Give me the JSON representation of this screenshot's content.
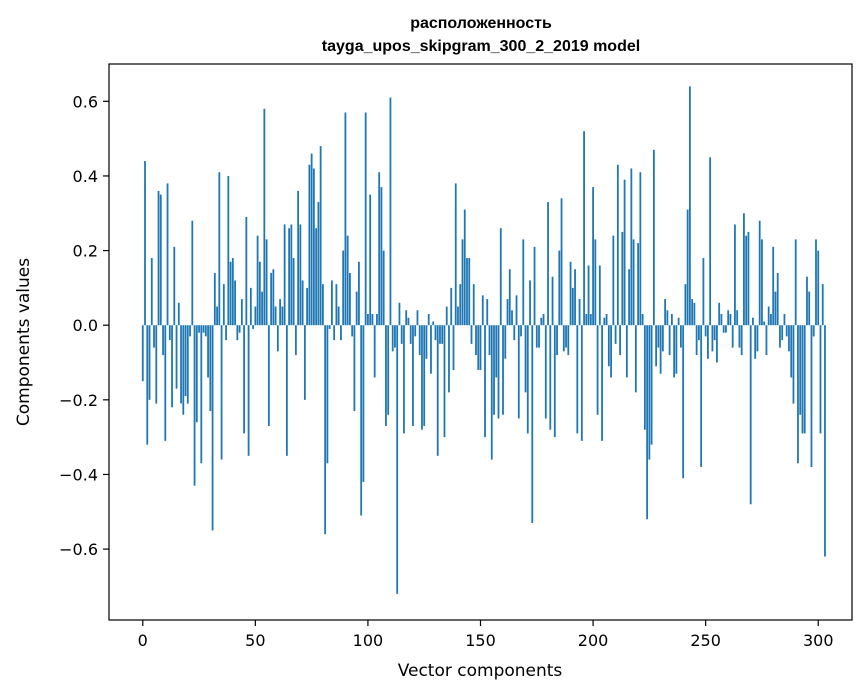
{
  "chart_data": {
    "type": "bar",
    "title": "расположенность",
    "subtitle": "tayga_upos_skipgram_300_2_2019 model",
    "xlabel": "Vector components",
    "ylabel": "Components values",
    "xlim": [
      -15,
      315
    ],
    "ylim": [
      -0.79,
      0.7
    ],
    "xticks": [
      0,
      50,
      100,
      150,
      200,
      250,
      300
    ],
    "yticks": [
      -0.6,
      -0.4,
      -0.2,
      0.0,
      0.2,
      0.4,
      0.6
    ],
    "xtick_labels": [
      "0",
      "50",
      "100",
      "150",
      "200",
      "250",
      "300"
    ],
    "ytick_labels": [
      "−0.6",
      "−0.4",
      "−0.2",
      "0.0",
      "0.2",
      "0.4",
      "0.6"
    ],
    "grid": false,
    "bar_color": "#1f77b4",
    "values": [
      -0.15,
      0.44,
      -0.32,
      -0.2,
      0.18,
      -0.06,
      -0.21,
      0.36,
      0.35,
      -0.08,
      -0.31,
      0.38,
      -0.04,
      -0.22,
      0.21,
      -0.17,
      0.06,
      -0.21,
      -0.24,
      -0.19,
      -0.21,
      -0.03,
      0.28,
      -0.43,
      -0.26,
      -0.02,
      -0.37,
      -0.02,
      -0.03,
      -0.14,
      -0.23,
      -0.55,
      0.14,
      0.05,
      0.41,
      -0.36,
      0.11,
      -0.04,
      0.4,
      0.17,
      0.18,
      0.12,
      -0.04,
      -0.02,
      0.07,
      -0.29,
      0.29,
      -0.35,
      0.1,
      -0.01,
      0.05,
      0.24,
      0.17,
      0.09,
      0.58,
      0.23,
      -0.27,
      0.14,
      0.15,
      0.05,
      -0.07,
      0.07,
      0.05,
      0.27,
      -0.35,
      0.26,
      0.27,
      0.18,
      -0.08,
      0.36,
      0.27,
      0.12,
      -0.2,
      0.1,
      0.43,
      0.46,
      0.42,
      0.26,
      0.33,
      0.48,
      0.11,
      -0.56,
      -0.37,
      -0.01,
      0.12,
      -0.04,
      0.11,
      0.05,
      -0.04,
      0.2,
      0.57,
      0.24,
      0.14,
      -0.03,
      -0.23,
      0.09,
      0.17,
      -0.51,
      -0.42,
      0.57,
      0.03,
      0.35,
      0.03,
      -0.14,
      0.03,
      0.41,
      0.37,
      0.2,
      -0.27,
      -0.24,
      0.61,
      -0.07,
      -0.06,
      -0.72,
      0.06,
      -0.05,
      -0.29,
      0.04,
      0.02,
      -0.05,
      -0.27,
      -0.03,
      0.04,
      -0.08,
      -0.28,
      -0.27,
      -0.09,
      0.03,
      -0.13,
      0.01,
      -0.04,
      -0.35,
      -0.05,
      -0.05,
      -0.3,
      0.05,
      -0.18,
      0.1,
      -0.12,
      0.38,
      0.05,
      0.11,
      0.23,
      0.31,
      0.18,
      0.18,
      -0.05,
      0.11,
      -0.08,
      -0.12,
      -0.12,
      0.08,
      -0.3,
      0.07,
      -0.08,
      -0.36,
      -0.24,
      -0.14,
      -0.25,
      0.26,
      -0.24,
      -0.09,
      0.07,
      0.15,
      0.04,
      -0.04,
      0.08,
      -0.25,
      -0.03,
      0.23,
      -0.18,
      -0.29,
      0.12,
      -0.53,
      0.21,
      -0.06,
      -0.06,
      0.02,
      0.03,
      -0.25,
      0.33,
      -0.28,
      0.13,
      -0.3,
      -0.08,
      0.2,
      0.34,
      -0.07,
      -0.06,
      -0.08,
      0.17,
      0.1,
      0.15,
      -0.29,
      0.07,
      -0.31,
      0.52,
      0.03,
      0.16,
      0.03,
      0.37,
      0.23,
      -0.24,
      0.16,
      -0.31,
      0.02,
      0.03,
      -0.11,
      -0.14,
      0.24,
      -0.05,
      0.43,
      -0.08,
      0.25,
      0.39,
      -0.14,
      0.15,
      0.42,
      0.23,
      -0.18,
      0.22,
      0.41,
      0.03,
      -0.28,
      -0.52,
      -0.36,
      -0.32,
      0.47,
      -0.11,
      -0.06,
      -0.13,
      -0.07,
      0.07,
      0.04,
      -0.08,
      0.03,
      -0.14,
      -0.13,
      0.02,
      -0.06,
      -0.41,
      0.11,
      0.31,
      0.64,
      0.07,
      0.06,
      -0.08,
      -0.04,
      -0.38,
      0.18,
      -0.03,
      -0.09,
      0.45,
      -0.07,
      -0.04,
      -0.1,
      0.06,
      0.03,
      -0.02,
      -0.02,
      0.04,
      0.03,
      -0.06,
      0.27,
      0.04,
      -0.06,
      -0.08,
      0.3,
      0.24,
      0.25,
      -0.48,
      0.02,
      -0.09,
      -0.07,
      0.28,
      0.23,
      0.01,
      -0.08,
      0.05,
      0.03,
      0.21,
      0.09,
      0.14,
      -0.06,
      -0.04,
      0.03,
      -0.03,
      -0.07,
      -0.14,
      -0.21,
      0.23,
      -0.37,
      -0.24,
      -0.29,
      -0.29,
      0.13,
      0.09,
      -0.38,
      -0.03,
      0.23,
      0.2,
      -0.29,
      0.11,
      -0.62
    ]
  }
}
